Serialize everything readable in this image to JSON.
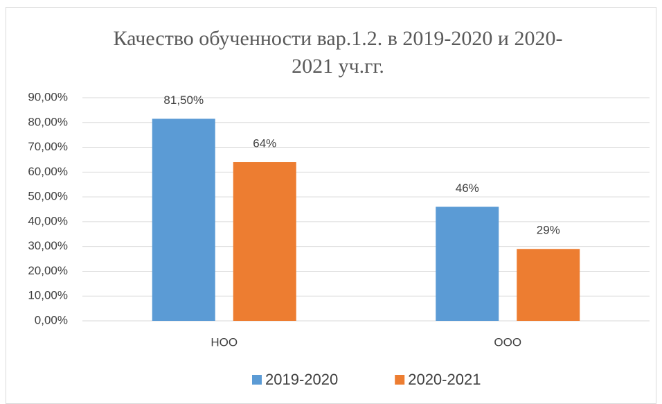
{
  "chart_data": {
    "type": "bar",
    "title": "Качество обученности вар.1.2. в 2019-2020 и 2020-2021 уч.гг.",
    "categories": [
      "НОО",
      "ООО"
    ],
    "series": [
      {
        "name": "2019-2020",
        "color": "#5b9bd5",
        "values": [
          81.5,
          46
        ],
        "value_labels": [
          "81,50%",
          "46%"
        ]
      },
      {
        "name": "2020-2021",
        "color": "#ed7d31",
        "values": [
          64,
          29
        ],
        "value_labels": [
          "64%",
          "29%"
        ]
      }
    ],
    "ylim": [
      0,
      90
    ],
    "yticks": [
      {
        "value": 0,
        "label": "0,00%"
      },
      {
        "value": 10,
        "label": "10,00%"
      },
      {
        "value": 20,
        "label": "20,00%"
      },
      {
        "value": 30,
        "label": "30,00%"
      },
      {
        "value": 40,
        "label": "40,00%"
      },
      {
        "value": 50,
        "label": "50,00%"
      },
      {
        "value": 60,
        "label": "60,00%"
      },
      {
        "value": 70,
        "label": "70,00%"
      },
      {
        "value": 80,
        "label": "80,00%"
      },
      {
        "value": 90,
        "label": "90,00%"
      }
    ],
    "grid": true,
    "legend": "bottom"
  }
}
